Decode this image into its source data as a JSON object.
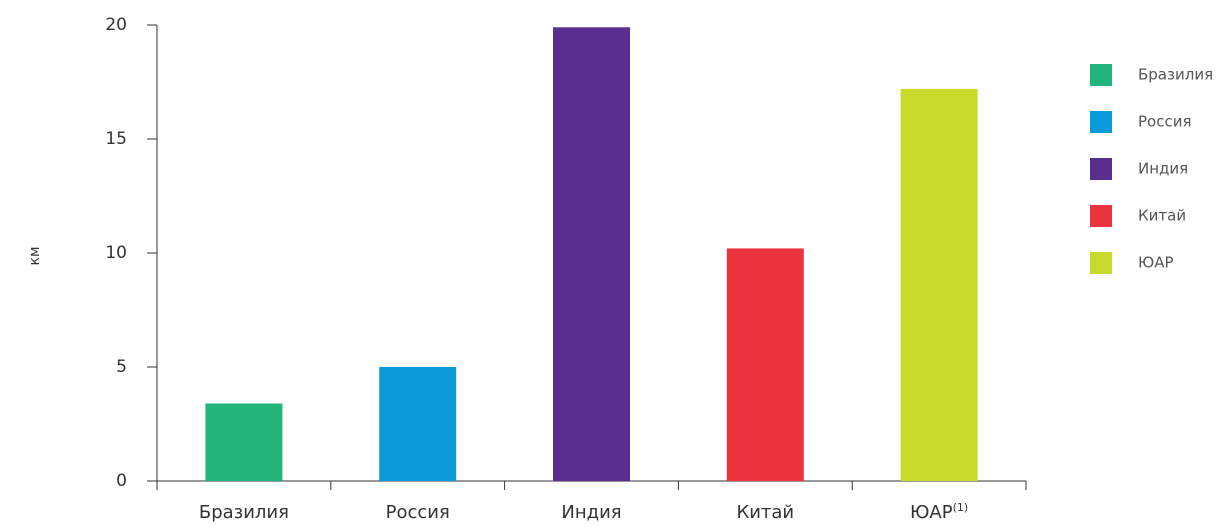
{
  "chart_data": {
    "type": "bar",
    "categories": [
      "Бразилия",
      "Россия",
      "Индия",
      "Китай",
      "ЮАР"
    ],
    "category_label_superscripts": [
      "",
      "",
      "",
      "",
      "(1)"
    ],
    "values": [
      3.4,
      5.0,
      19.9,
      10.2,
      17.2
    ],
    "colors": [
      "#22b47a",
      "#0a9ad9",
      "#5a2e8e",
      "#ec3340",
      "#c8da2c"
    ],
    "title": "",
    "xlabel": "",
    "ylabel": "км",
    "ylim": [
      0,
      20
    ],
    "yticks": [
      0,
      5,
      10,
      15,
      20
    ],
    "grid": false,
    "legend": {
      "position": "right",
      "entries": [
        "Бразилия",
        "Россия",
        "Индия",
        "Китай",
        "ЮАР"
      ]
    }
  }
}
